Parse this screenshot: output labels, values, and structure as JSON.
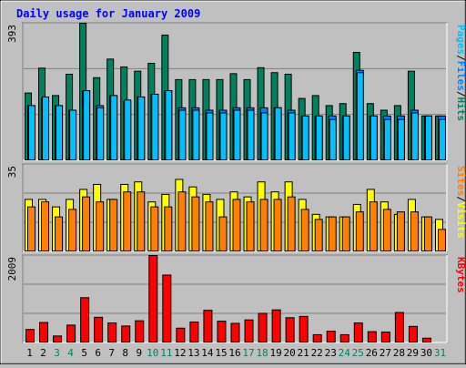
{
  "title": "Daily usage for January 2009",
  "colors": {
    "background": "#c0c0c0",
    "plot_bg": "#c0c0c0",
    "title": "#0000ff",
    "hits": "#00805c",
    "files": "#0080ff",
    "pages": "#00c0ff",
    "visits": "#ffff00",
    "sites": "#ff8000",
    "kbytes": "#ff0000",
    "weekend_label": "#00805c",
    "weekday_label": "#000000",
    "slash": "#000000"
  },
  "chart_data": [
    {
      "type": "bar",
      "title": "Daily usage for January 2009",
      "panel": "hits-files-pages",
      "ylabel_max": "393",
      "ymax": 393,
      "scale": "log",
      "legend": [
        {
          "name": "Pages",
          "color": "#00c0ff"
        },
        {
          "name": "Files",
          "color": "#0080ff"
        },
        {
          "name": "Hits",
          "color": "#00805c"
        }
      ],
      "categories": [
        "1",
        "2",
        "3",
        "4",
        "5",
        "6",
        "7",
        "8",
        "9",
        "10",
        "11",
        "12",
        "13",
        "14",
        "15",
        "16",
        "17",
        "18",
        "19",
        "20",
        "21",
        "22",
        "23",
        "24",
        "25",
        "26",
        "27",
        "28",
        "29",
        "30",
        "31"
      ],
      "series": [
        {
          "name": "Hits",
          "values": [
            18,
            55,
            16,
            42,
            393,
            36,
            82,
            58,
            48,
            68,
            234,
            33,
            33,
            33,
            33,
            43,
            33,
            56,
            45,
            42,
            14,
            16,
            10,
            11,
            110,
            11,
            8,
            10,
            48,
            6,
            6
          ]
        },
        {
          "name": "Files",
          "values": [
            10,
            14,
            10,
            8,
            20,
            10,
            16,
            12,
            15,
            17,
            20,
            9,
            9,
            8,
            8,
            9,
            9,
            9,
            9,
            8,
            6,
            6,
            6,
            6,
            50,
            6,
            6,
            6,
            8,
            6,
            6
          ]
        },
        {
          "name": "Pages",
          "values": [
            10,
            15,
            10,
            8,
            20,
            9,
            16,
            13,
            15,
            17,
            20,
            8,
            8,
            7,
            7,
            8,
            8,
            7,
            9,
            7,
            6,
            6,
            5,
            6,
            45,
            6,
            5,
            5,
            7,
            6,
            5
          ]
        }
      ]
    },
    {
      "type": "bar",
      "panel": "visits-sites",
      "ylabel_max": "35",
      "ymax": 35,
      "legend": [
        {
          "name": "Sites",
          "color": "#ff8000"
        },
        {
          "name": "Visits",
          "color": "#ffff00"
        }
      ],
      "categories": [
        "1",
        "2",
        "3",
        "4",
        "5",
        "6",
        "7",
        "8",
        "9",
        "10",
        "11",
        "12",
        "13",
        "14",
        "15",
        "16",
        "17",
        "18",
        "19",
        "20",
        "21",
        "22",
        "23",
        "24",
        "25",
        "26",
        "27",
        "28",
        "29",
        "30",
        "31"
      ],
      "series": [
        {
          "name": "Visits",
          "values": [
            21,
            21,
            18,
            21,
            25,
            27,
            21,
            27,
            28,
            20,
            23,
            29,
            26,
            23,
            21,
            24,
            22,
            28,
            24,
            28,
            21,
            15,
            14,
            14,
            19,
            25,
            20,
            15,
            21,
            14,
            13
          ]
        },
        {
          "name": "Sites",
          "values": [
            18,
            20,
            14,
            17,
            22,
            20,
            21,
            24,
            24,
            18,
            18,
            24,
            22,
            20,
            14,
            21,
            20,
            21,
            21,
            22,
            17,
            13,
            14,
            14,
            16,
            20,
            17,
            16,
            16,
            14,
            9
          ]
        }
      ]
    },
    {
      "type": "bar",
      "panel": "kbytes",
      "ylabel_max": "2009",
      "ymax": 2009,
      "legend": [
        {
          "name": "KBytes",
          "color": "#ff0000"
        }
      ],
      "categories": [
        "1",
        "2",
        "3",
        "4",
        "5",
        "6",
        "7",
        "8",
        "9",
        "10",
        "11",
        "12",
        "13",
        "14",
        "15",
        "16",
        "17",
        "18",
        "19",
        "20",
        "21",
        "22",
        "23",
        "24",
        "25",
        "26",
        "27",
        "28",
        "29",
        "30",
        "31"
      ],
      "series": [
        {
          "name": "KBytes",
          "values": [
            310,
            470,
            160,
            410,
            1040,
            590,
            460,
            390,
            510,
            2009,
            1560,
            340,
            480,
            750,
            500,
            450,
            530,
            680,
            760,
            580,
            610,
            190,
            270,
            190,
            460,
            260,
            250,
            700,
            380,
            110,
            0
          ]
        }
      ]
    }
  ],
  "weekend_days": [
    "3",
    "4",
    "10",
    "11",
    "17",
    "18",
    "24",
    "25",
    "31"
  ]
}
